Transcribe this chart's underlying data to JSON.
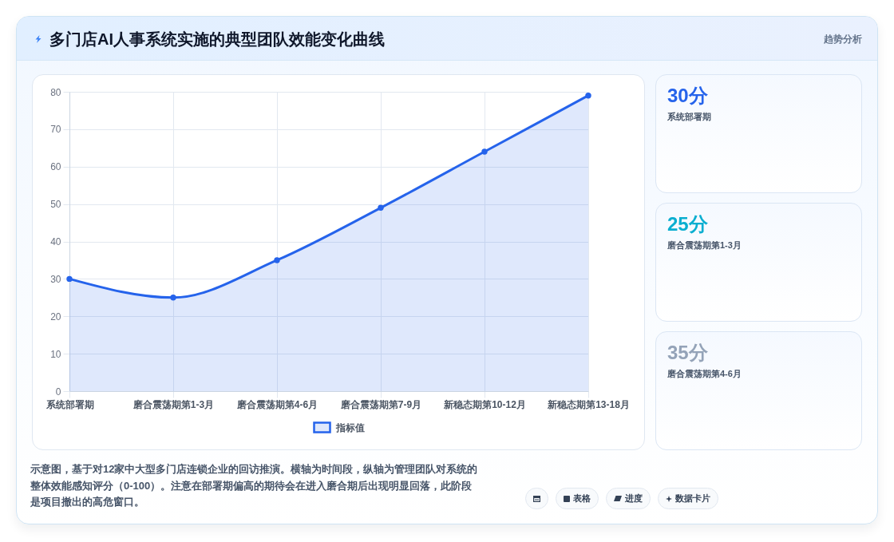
{
  "chart_data": [
    {
      "type": "area",
      "title": "多门店AI人事系统实施的典型团队效能变化曲线",
      "categories": [
        "系统部署期",
        "磨合震荡期第1-3月",
        "磨合震荡期第4-6月",
        "磨合震荡期第7-9月",
        "新稳态期第10-12月",
        "新稳态期第13-18月"
      ],
      "series": [
        {
          "name": "指标值",
          "color": "#2563eb",
          "values": [
            30,
            25,
            35,
            49,
            64,
            79
          ]
        }
      ],
      "ylim": [
        0,
        80
      ],
      "yticks": [
        0,
        10,
        20,
        30,
        40,
        50,
        60,
        70,
        80
      ],
      "grid": true,
      "legend": "bottom",
      "marker": "circle",
      "annotations": [
        "示意图，基于对12家中大型多门店连锁企业的回访推演。横轴为时间段，纵轴为管理团队对系统的整体效能感知评分（0-100）。注意在部署期偏高的期待会在进入磨合期后出现明显回落，此阶段是项目撤出的高危窗口。"
      ]
    },
    {
      "type": "other",
      "title": "趋势分析",
      "annotations": [
        "30分",
        "系统部署期",
        "25分",
        "磨合震荡期第1-3月",
        "35分",
        "磨合震荡期第4-6月"
      ]
    },
    {
      "type": "other",
      "annotations": [
        "表格",
        "进度",
        "数据卡片"
      ]
    }
  ]
}
